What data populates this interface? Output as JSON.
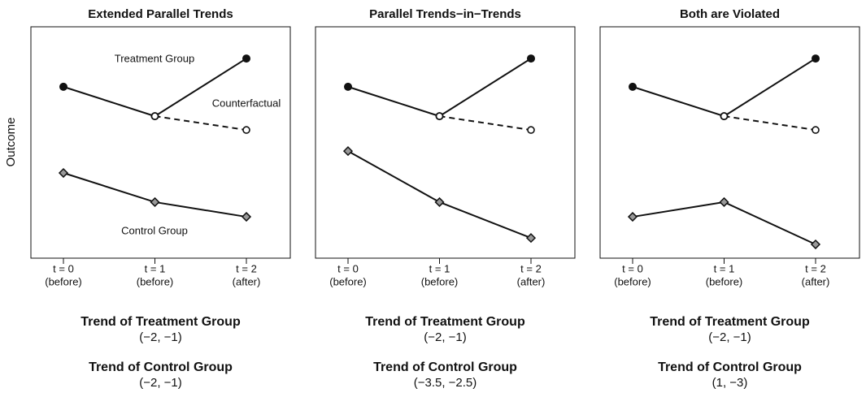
{
  "chart_data": [
    {
      "type": "line",
      "title": "Extended Parallel Trends",
      "ylabel": "Outcome",
      "categories": [
        "t = 0",
        "t = 1",
        "t = 2"
      ],
      "category_sublabels": [
        "(before)",
        "(before)",
        "(after)"
      ],
      "ylim": [
        0,
        10
      ],
      "series": [
        {
          "color": "#111111",
          "marker": "circle",
          "dashed": false,
          "values": [
            7.46,
            6.18,
            8.69
          ]
        },
        {
          "color": "#111111",
          "marker": "open-circle",
          "dashed": true,
          "values": [
            null,
            6.18,
            5.58
          ]
        },
        {
          "color": "#111111",
          "marker": "diamond",
          "dashed": false,
          "values": [
            3.71,
            2.44,
            1.8
          ]
        }
      ],
      "annotations": [
        "Treatment Group",
        "Counterfactual",
        "Control Group"
      ],
      "trends": [
        {
          "heading": "Trend of Treatment Group",
          "value": "(−2, −1)"
        },
        {
          "heading": "Trend of Control Group",
          "value": "(−2, −1)"
        }
      ]
    },
    {
      "type": "line",
      "title": "Parallel Trends−in−Trends",
      "categories": [
        "t = 0",
        "t = 1",
        "t = 2"
      ],
      "category_sublabels": [
        "(before)",
        "(before)",
        "(after)"
      ],
      "ylim": [
        0,
        10
      ],
      "series": [
        {
          "color": "#111111",
          "marker": "circle",
          "dashed": false,
          "values": [
            7.46,
            6.18,
            8.69
          ]
        },
        {
          "color": "#111111",
          "marker": "open-circle",
          "dashed": true,
          "values": [
            null,
            6.18,
            5.58
          ]
        },
        {
          "color": "#111111",
          "marker": "diamond",
          "dashed": false,
          "values": [
            4.66,
            2.44,
            0.88
          ]
        }
      ],
      "trends": [
        {
          "heading": "Trend of Treatment Group",
          "value": "(−2, −1)"
        },
        {
          "heading": "Trend of Control Group",
          "value": "(−3.5, −2.5)"
        }
      ]
    },
    {
      "type": "line",
      "title": "Both are Violated",
      "categories": [
        "t = 0",
        "t = 1",
        "t = 2"
      ],
      "category_sublabels": [
        "(before)",
        "(before)",
        "(after)"
      ],
      "ylim": [
        0,
        10
      ],
      "series": [
        {
          "color": "#111111",
          "marker": "circle",
          "dashed": false,
          "values": [
            7.46,
            6.18,
            8.69
          ]
        },
        {
          "color": "#111111",
          "marker": "open-circle",
          "dashed": true,
          "values": [
            null,
            6.18,
            5.58
          ]
        },
        {
          "color": "#111111",
          "marker": "diamond",
          "dashed": false,
          "values": [
            1.8,
            2.44,
            0.6
          ]
        }
      ],
      "trends": [
        {
          "heading": "Trend of Treatment Group",
          "value": "(−2, −1)"
        },
        {
          "heading": "Trend of Control Group",
          "value": "(1, −3)"
        }
      ]
    }
  ]
}
